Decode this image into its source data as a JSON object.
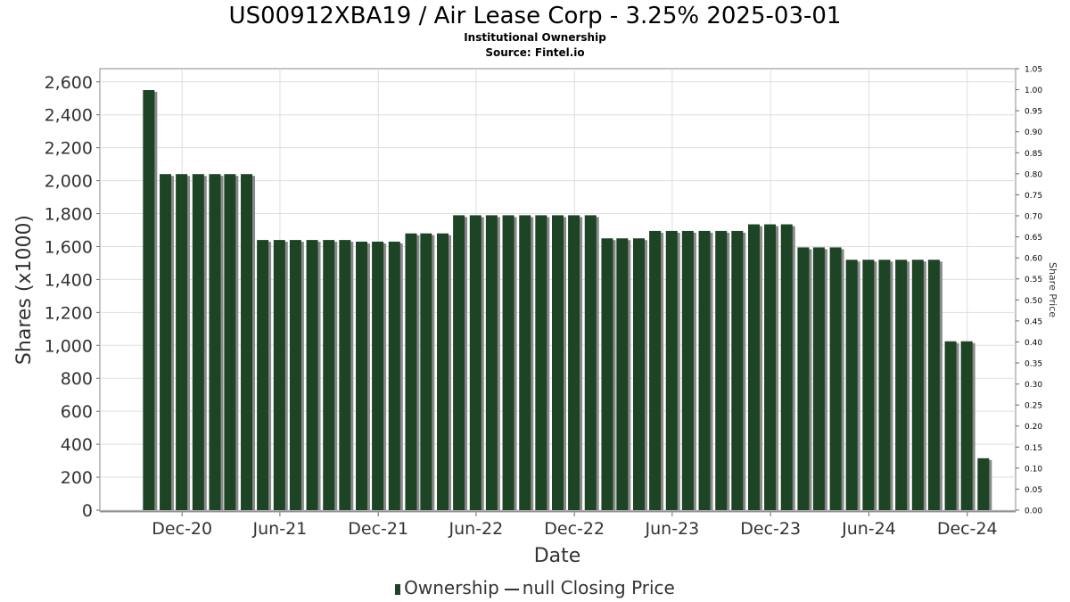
{
  "title": "US00912XBA19 / Air Lease Corp - 3.25% 2025-03-01",
  "subtitle": "Institutional Ownership",
  "source": "Source: Fintel.io",
  "legend": {
    "ownership": "Ownership",
    "price": "null Closing Price"
  },
  "colors": {
    "bar": "#1d4425",
    "bar_shadow": "#8a8a8a",
    "grid": "#dddddd"
  },
  "chart_data": {
    "type": "bar",
    "xlabel": "Date",
    "ylabel": "Shares (x1000)",
    "y2label": "Share Price",
    "ylim": [
      0,
      2680
    ],
    "y2lim": [
      0,
      1.05
    ],
    "grid": true,
    "legend_position": "bottom",
    "yticks": [
      "0",
      "200",
      "400",
      "600",
      "800",
      "1,000",
      "1,200",
      "1,400",
      "1,600",
      "1,800",
      "2,000",
      "2,200",
      "2,400",
      "2,600"
    ],
    "y2ticks": [
      "0.00",
      "0.05",
      "0.10",
      "0.15",
      "0.20",
      "0.25",
      "0.30",
      "0.35",
      "0.40",
      "0.45",
      "0.50",
      "0.55",
      "0.60",
      "0.65",
      "0.70",
      "0.75",
      "0.80",
      "0.85",
      "0.90",
      "0.95",
      "1.00",
      "1.05"
    ],
    "xticks": [
      {
        "label": "Dec-20",
        "date": "2020-12-01"
      },
      {
        "label": "Jun-21",
        "date": "2021-06-01"
      },
      {
        "label": "Dec-21",
        "date": "2021-12-01"
      },
      {
        "label": "Jun-22",
        "date": "2022-06-01"
      },
      {
        "label": "Dec-22",
        "date": "2022-12-01"
      },
      {
        "label": "Jun-23",
        "date": "2023-06-01"
      },
      {
        "label": "Dec-23",
        "date": "2023-12-01"
      },
      {
        "label": "Jun-24",
        "date": "2024-06-01"
      },
      {
        "label": "Dec-24",
        "date": "2024-12-01"
      }
    ],
    "x_range": [
      "2020-07-01",
      "2025-03-01"
    ],
    "series": [
      {
        "name": "Ownership",
        "x": [
          "2020-09-30",
          "2020-10-31",
          "2020-11-30",
          "2020-12-31",
          "2021-01-31",
          "2021-02-28",
          "2021-03-31",
          "2021-04-30",
          "2021-05-31",
          "2021-06-30",
          "2021-07-31",
          "2021-08-31",
          "2021-09-30",
          "2021-10-31",
          "2021-11-30",
          "2021-12-31",
          "2022-01-31",
          "2022-02-28",
          "2022-03-31",
          "2022-04-30",
          "2022-05-31",
          "2022-06-30",
          "2022-07-31",
          "2022-08-31",
          "2022-09-30",
          "2022-10-31",
          "2022-11-30",
          "2022-12-31",
          "2023-01-31",
          "2023-02-28",
          "2023-03-31",
          "2023-04-30",
          "2023-05-31",
          "2023-06-30",
          "2023-07-31",
          "2023-08-31",
          "2023-09-30",
          "2023-10-31",
          "2023-11-30",
          "2023-12-31",
          "2024-01-31",
          "2024-02-29",
          "2024-03-31",
          "2024-04-30",
          "2024-05-31",
          "2024-06-30",
          "2024-07-31",
          "2024-08-31",
          "2024-09-30",
          "2024-10-31",
          "2024-11-30",
          "2024-12-31"
        ],
        "values": [
          2550,
          2040,
          2040,
          2040,
          2040,
          2040,
          2040,
          1640,
          1640,
          1640,
          1640,
          1640,
          1640,
          1630,
          1630,
          1630,
          1680,
          1680,
          1680,
          1790,
          1790,
          1790,
          1790,
          1790,
          1790,
          1790,
          1790,
          1790,
          1650,
          1650,
          1650,
          1695,
          1695,
          1695,
          1695,
          1695,
          1695,
          1735,
          1735,
          1735,
          1595,
          1595,
          1595,
          1520,
          1520,
          1520,
          1520,
          1520,
          1520,
          1025,
          1025,
          315
        ]
      }
    ]
  }
}
